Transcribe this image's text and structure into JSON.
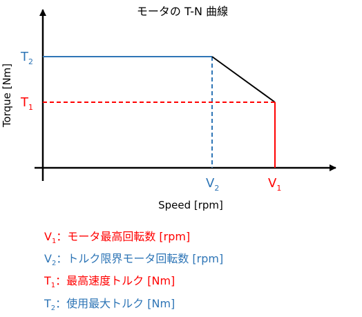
{
  "title": "モータの T-N 曲線",
  "x_axis_label": "Speed [rpm]",
  "y_axis_label": "Torque [Nm]",
  "colors": {
    "blue": "#2e75b6",
    "red": "#ff0000",
    "axis": "#000000"
  },
  "markers": {
    "T2": {
      "letter": "T",
      "sub": "2"
    },
    "T1": {
      "letter": "T",
      "sub": "1"
    },
    "V2": {
      "letter": "V",
      "sub": "2"
    },
    "V1": {
      "letter": "V",
      "sub": "1"
    }
  },
  "legend": [
    {
      "letter": "V",
      "sub": "1",
      "text": "：モータ最高回転数 [rpm]",
      "color": "#ff0000"
    },
    {
      "letter": "V",
      "sub": "2",
      "text": "：トルク限界モータ回転数 [rpm]",
      "color": "#2e75b6"
    },
    {
      "letter": "T",
      "sub": "1",
      "text": "：最高速度トルク [Nm]",
      "color": "#ff0000"
    },
    {
      "letter": "T",
      "sub": "2",
      "text": "：使用最大トルク [Nm]",
      "color": "#2e75b6"
    }
  ]
}
